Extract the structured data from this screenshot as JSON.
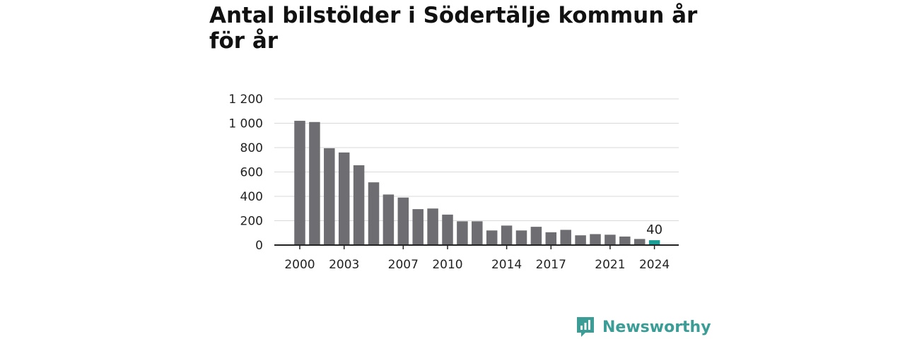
{
  "chart_data": {
    "type": "bar",
    "title": "Antal bilstölder i Södertälje kommun år för år",
    "xlabel": "",
    "ylabel": "",
    "x": [
      2000,
      2001,
      2002,
      2003,
      2004,
      2005,
      2006,
      2007,
      2008,
      2009,
      2010,
      2011,
      2012,
      2013,
      2014,
      2015,
      2016,
      2017,
      2018,
      2019,
      2020,
      2021,
      2022,
      2023,
      2024
    ],
    "values": [
      1020,
      1010,
      795,
      760,
      655,
      515,
      415,
      390,
      295,
      300,
      250,
      195,
      195,
      120,
      160,
      120,
      150,
      105,
      125,
      80,
      90,
      85,
      70,
      50,
      40
    ],
    "x_tick_labels": [
      "2000",
      "2003",
      "2007",
      "2010",
      "2014",
      "2017",
      "2021",
      "2024"
    ],
    "y_ticks": [
      0,
      200,
      400,
      600,
      800,
      1000,
      1200
    ],
    "y_tick_labels": [
      "0",
      "200",
      "400",
      "600",
      "800",
      "1 000",
      "1 200"
    ],
    "ylim": [
      0,
      1200
    ],
    "grid": true,
    "highlight": {
      "year": 2024,
      "label": "40",
      "color": "#1a9e96"
    },
    "bar_color": "#6e6d72",
    "legend": "none"
  },
  "brand": {
    "name": "Newsworthy",
    "color": "#3c9d96",
    "icon": "newsworthy-logo-icon"
  }
}
